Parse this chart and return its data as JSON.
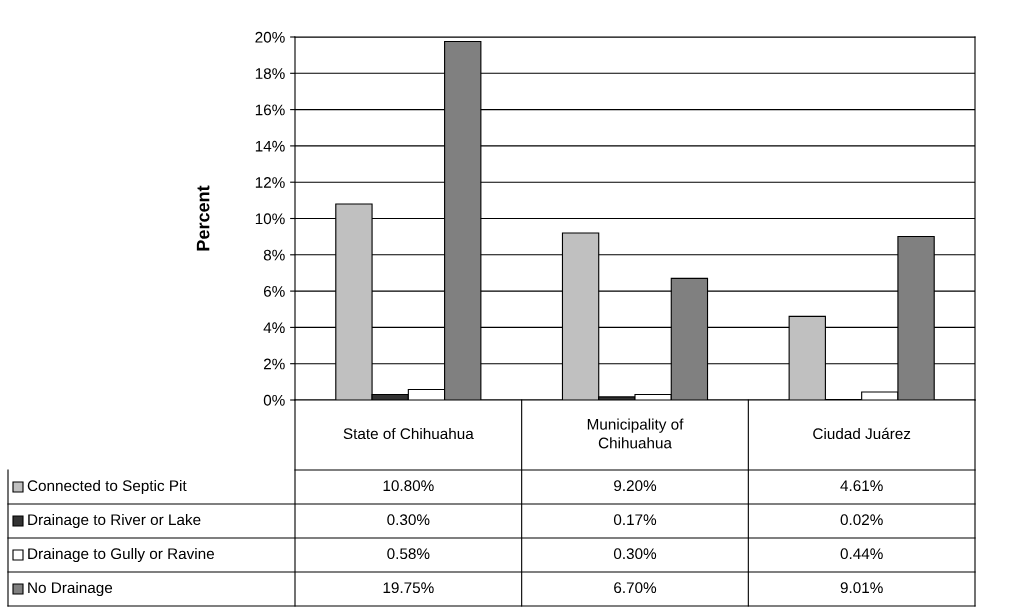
{
  "chart_data": {
    "type": "bar",
    "ylabel": "Percent",
    "categories": [
      "State of Chihuahua",
      "Municipality of\nChihuahua",
      "Ciudad Juárez"
    ],
    "series": [
      {
        "name": "Connected to Septic Pit",
        "color": "#c0c0c0",
        "values": [
          10.8,
          9.2,
          4.61
        ],
        "value_labels": [
          "10.80%",
          "9.20%",
          "4.61%"
        ]
      },
      {
        "name": "Drainage to River or Lake",
        "color": "#333333",
        "values": [
          0.3,
          0.17,
          0.02
        ],
        "value_labels": [
          "0.30%",
          "0.17%",
          "0.02%"
        ]
      },
      {
        "name": "Drainage to Gully or Ravine",
        "color": "#ffffff",
        "values": [
          0.58,
          0.3,
          0.44
        ],
        "value_labels": [
          "0.58%",
          "0.30%",
          "0.44%"
        ]
      },
      {
        "name": "No Drainage",
        "color": "#808080",
        "values": [
          19.75,
          6.7,
          9.01
        ],
        "value_labels": [
          "19.75%",
          "6.70%",
          "9.01%"
        ]
      }
    ],
    "ylim": [
      0,
      20
    ],
    "yticks": [
      {
        "value": 0,
        "label": "0%"
      },
      {
        "value": 2,
        "label": "2%"
      },
      {
        "value": 4,
        "label": "4%"
      },
      {
        "value": 6,
        "label": "6%"
      },
      {
        "value": 8,
        "label": "8%"
      },
      {
        "value": 10,
        "label": "10%"
      },
      {
        "value": 12,
        "label": "12%"
      },
      {
        "value": 14,
        "label": "14%"
      },
      {
        "value": 16,
        "label": "16%"
      },
      {
        "value": 18,
        "label": "18%"
      },
      {
        "value": 20,
        "label": "20%"
      }
    ],
    "grid": "y",
    "legend": "bottom"
  }
}
